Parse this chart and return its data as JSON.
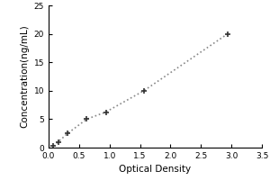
{
  "x_data": [
    0.078,
    0.156,
    0.313,
    0.625,
    0.938,
    1.563,
    2.938
  ],
  "y_data": [
    0.3,
    1.0,
    2.5,
    5.0,
    6.25,
    10.0,
    20.0
  ],
  "xlabel": "Optical Density",
  "ylabel": "Concentration(ng/mL)",
  "xlim": [
    0,
    3.5
  ],
  "ylim": [
    0,
    25
  ],
  "xticks": [
    0,
    0.5,
    1,
    1.5,
    2,
    2.5,
    3,
    3.5
  ],
  "yticks": [
    0,
    5,
    10,
    15,
    20,
    25
  ],
  "line_color": "#888888",
  "marker_color": "#333333",
  "marker_style": "+",
  "line_style": ":",
  "background_color": "#ffffff",
  "marker_size": 5,
  "marker_edge_width": 1.2,
  "line_width": 1.2,
  "tick_fontsize": 6.5,
  "label_fontsize": 7.5
}
